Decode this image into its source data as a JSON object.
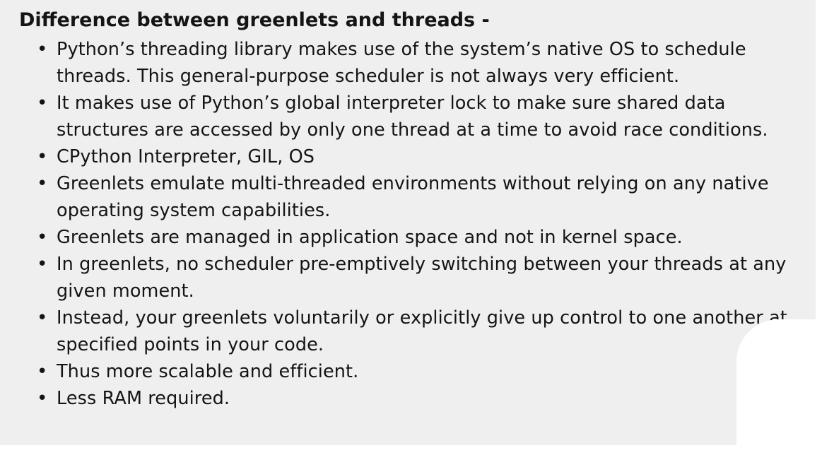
{
  "title": "Difference between greenlets and threads -",
  "bullets": [
    "Python’s threading library makes use of the system’s native OS to schedule threads. This general-purpose scheduler is not always very efficient.",
    "It makes use of Python’s global interpreter lock to make sure shared data structures are accessed by only one thread at a time to avoid race conditions.",
    "CPython Interpreter, GIL, OS",
    "Greenlets emulate multi-threaded environments without relying on any native operating system capabilities.",
    "Greenlets are managed in application space and not in kernel space.",
    "In greenlets, no scheduler pre-emptively switching between your threads at any given moment.",
    "Instead, your greenlets voluntarily or explicitly give up control to one another at specified points in your code.",
    "Thus more scalable and efficient.",
    "Less RAM required."
  ],
  "colors": {
    "background": "#efefef",
    "text": "#141414"
  }
}
